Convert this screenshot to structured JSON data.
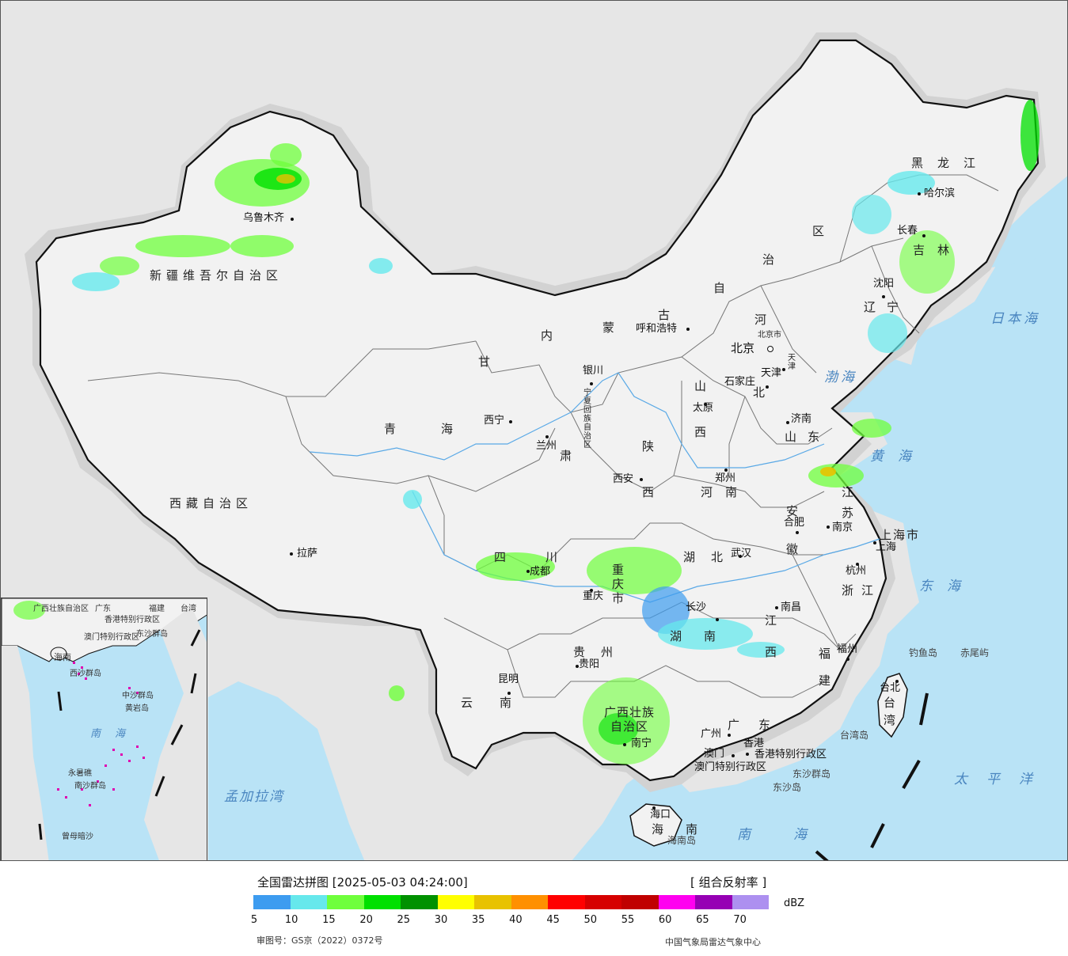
{
  "map": {
    "colors": {
      "land": "#f2f2f2",
      "neighbor_land": "#e6e6e6",
      "ocean": "#b9e3f6",
      "border": "#111111",
      "province_border": "#777777",
      "buffer": "#d2d2d2",
      "river": "#5aa9e6"
    },
    "provinces": [
      {
        "id": "xinjiang",
        "label": "新疆维吾尔自治区"
      },
      {
        "id": "xizang",
        "label": "西藏自治区"
      },
      {
        "id": "qinghai-1",
        "label": "青"
      },
      {
        "id": "qinghai-2",
        "label": "海"
      },
      {
        "id": "gansu-1",
        "label": "甘"
      },
      {
        "id": "gansu-2",
        "label": "肃"
      },
      {
        "id": "neimenggu-1",
        "label": "内"
      },
      {
        "id": "neimenggu-2",
        "label": "蒙"
      },
      {
        "id": "neimenggu-3",
        "label": "古"
      },
      {
        "id": "neimenggu-4",
        "label": "自"
      },
      {
        "id": "neimenggu-5",
        "label": "治"
      },
      {
        "id": "neimenggu-6",
        "label": "区"
      },
      {
        "id": "heilongjiang",
        "label": "黑龙江"
      },
      {
        "id": "jilin",
        "label": "吉林"
      },
      {
        "id": "liaoning",
        "label": "辽宁"
      },
      {
        "id": "hebei-1",
        "label": "河"
      },
      {
        "id": "hebei-2",
        "label": "北"
      },
      {
        "id": "shanxi-1",
        "label": "山"
      },
      {
        "id": "shanxi-2",
        "label": "西"
      },
      {
        "id": "shandong",
        "label": "山东"
      },
      {
        "id": "ningxia",
        "label": "宁夏回族自治区"
      },
      {
        "id": "shaanxi-1",
        "label": "陕"
      },
      {
        "id": "shaanxi-2",
        "label": "西"
      },
      {
        "id": "henan",
        "label": "河南"
      },
      {
        "id": "jiangsu-1",
        "label": "江"
      },
      {
        "id": "jiangsu-2",
        "label": "苏"
      },
      {
        "id": "anhui-1",
        "label": "安"
      },
      {
        "id": "anhui-2",
        "label": "徽"
      },
      {
        "id": "shanghai",
        "label": "上海市"
      },
      {
        "id": "sichuan",
        "label": "四川"
      },
      {
        "id": "chongqing",
        "label": "重庆市"
      },
      {
        "id": "hubei",
        "label": "湖北"
      },
      {
        "id": "zhejiang",
        "label": "浙江"
      },
      {
        "id": "hunan",
        "label": "湖南"
      },
      {
        "id": "jiangxi-1",
        "label": "江"
      },
      {
        "id": "jiangxi-2",
        "label": "西"
      },
      {
        "id": "fujian-1",
        "label": "福"
      },
      {
        "id": "fujian-2",
        "label": "建"
      },
      {
        "id": "guizhou",
        "label": "贵州"
      },
      {
        "id": "yunnan",
        "label": "云南"
      },
      {
        "id": "guangxi-1",
        "label": "广西壮族"
      },
      {
        "id": "guangxi-2",
        "label": "自治区"
      },
      {
        "id": "guangdong",
        "label": "广东"
      },
      {
        "id": "hainan",
        "label": "海南"
      },
      {
        "id": "taiwan-1",
        "label": "台"
      },
      {
        "id": "taiwan-2",
        "label": "湾"
      },
      {
        "id": "beijing",
        "label": "北京市"
      },
      {
        "id": "tianjin",
        "label": "天津"
      }
    ],
    "cities": [
      {
        "id": "urumqi",
        "label": "乌鲁木齐"
      },
      {
        "id": "lhasa",
        "label": "拉萨"
      },
      {
        "id": "xining",
        "label": "西宁"
      },
      {
        "id": "lanzhou",
        "label": "兰州"
      },
      {
        "id": "yinchuan",
        "label": "银川"
      },
      {
        "id": "hohhot",
        "label": "呼和浩特"
      },
      {
        "id": "harbin",
        "label": "哈尔滨"
      },
      {
        "id": "changchun",
        "label": "长春"
      },
      {
        "id": "shenyang",
        "label": "沈阳"
      },
      {
        "id": "beijing",
        "label": "北京"
      },
      {
        "id": "tianjin",
        "label": "天津"
      },
      {
        "id": "shijiazhuang",
        "label": "石家庄"
      },
      {
        "id": "taiyuan",
        "label": "太原"
      },
      {
        "id": "jinan",
        "label": "济南"
      },
      {
        "id": "xian",
        "label": "西安"
      },
      {
        "id": "zhengzhou",
        "label": "郑州"
      },
      {
        "id": "hefei",
        "label": "合肥"
      },
      {
        "id": "nanjing",
        "label": "南京"
      },
      {
        "id": "shanghai",
        "label": "上海"
      },
      {
        "id": "hangzhou",
        "label": "杭州"
      },
      {
        "id": "wuhan",
        "label": "武汉"
      },
      {
        "id": "chengdu",
        "label": "成都"
      },
      {
        "id": "chongqing",
        "label": "重庆"
      },
      {
        "id": "changsha",
        "label": "长沙"
      },
      {
        "id": "nanchang",
        "label": "南昌"
      },
      {
        "id": "fuzhou",
        "label": "福州"
      },
      {
        "id": "guiyang",
        "label": "贵阳"
      },
      {
        "id": "kunming",
        "label": "昆明"
      },
      {
        "id": "nanning",
        "label": "南宁"
      },
      {
        "id": "guangzhou",
        "label": "广州"
      },
      {
        "id": "macau",
        "label": "澳门"
      },
      {
        "id": "hongkong",
        "label": "香港"
      },
      {
        "id": "haikou",
        "label": "海口"
      },
      {
        "id": "taibei",
        "label": "台北"
      }
    ],
    "special_regions": {
      "hk": "香港特别行政区",
      "macau": "澳门特别行政区"
    },
    "seas": {
      "bohai": "渤海",
      "huanghai": "黄海",
      "donghai": "东海",
      "nanhai": "南海",
      "ribenhai": "日本海",
      "taipingyang": "太平洋",
      "mengjialawan": "孟加拉湾"
    },
    "islands": {
      "diaoyu": "钓鱼岛",
      "chiwei": "赤尾屿",
      "taiwan_island": "台湾岛",
      "hainan_island": "海南岛",
      "dongsha_islands": "东沙群岛",
      "dongsha_island": "东沙岛"
    }
  },
  "inset": {
    "labels": {
      "guangxi": "广西壮族自治区",
      "guangdong": "广东",
      "fujian": "福建",
      "taiwan": "台湾",
      "hk": "香港特别行政区",
      "macau": "澳门特别行政区",
      "dongsha": "东沙群岛",
      "hainan": "海南",
      "xisha": "西沙群岛",
      "zhongsha": "中沙群岛",
      "huangyan": "黄岩岛",
      "nansha": "南沙群岛",
      "nanhai": "南海",
      "yongshu": "永暑礁",
      "zengmu": "曾母暗沙"
    }
  },
  "legend": {
    "title": "全国雷达拼图 [2025-05-03 04:24:00]",
    "product": "[ 组合反射率 ]",
    "unit": "dBZ",
    "colors": [
      "#3d9cf0",
      "#66e8ec",
      "#6fff3c",
      "#00e000",
      "#009100",
      "#ffff00",
      "#e8c200",
      "#ff9000",
      "#ff0000",
      "#d60000",
      "#c00000",
      "#ff00f0",
      "#9600b4",
      "#ad90f0"
    ],
    "ticks": [
      "5",
      "10",
      "15",
      "20",
      "25",
      "30",
      "35",
      "40",
      "45",
      "50",
      "55",
      "60",
      "65",
      "70"
    ],
    "approval": "审图号：GS京（2022）0372号",
    "source": "中国气象局雷达气象中心"
  }
}
